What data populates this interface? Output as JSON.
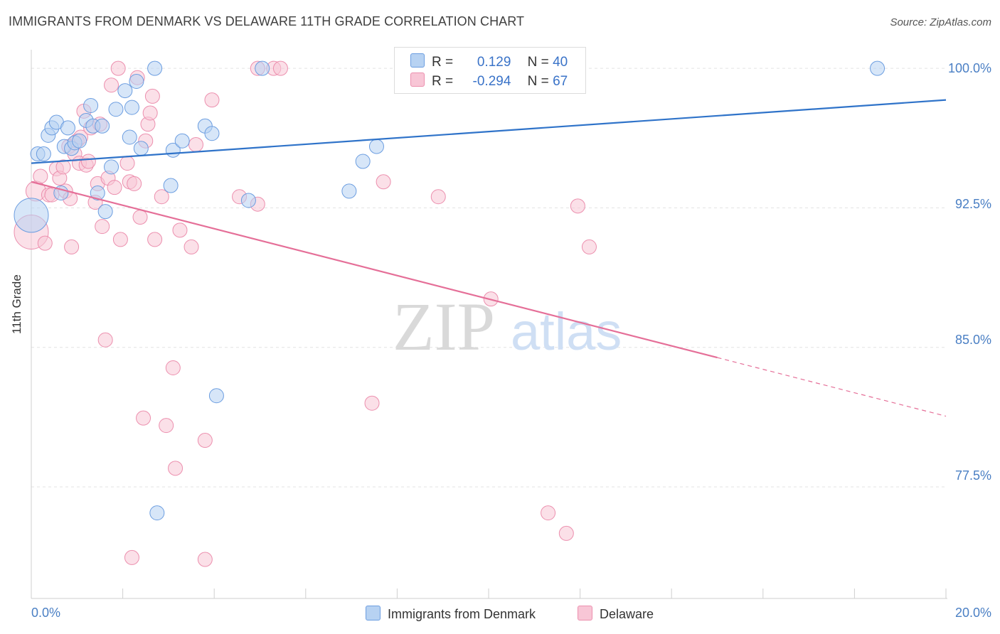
{
  "header": {
    "title": "IMMIGRANTS FROM DENMARK VS DELAWARE 11TH GRADE CORRELATION CHART",
    "source": "Source: ZipAtlas.com"
  },
  "watermark": {
    "zip": "ZIP",
    "atlas": "atlas"
  },
  "legend_top": {
    "rows": [
      {
        "r_label": "R =",
        "r_value": "0.129",
        "n_label": "N =",
        "n_value": "40"
      },
      {
        "r_label": "R =",
        "r_value": "-0.294",
        "n_label": "N =",
        "n_value": "67"
      }
    ]
  },
  "legend_bottom": {
    "items": [
      "Immigrants from Denmark",
      "Delaware"
    ]
  },
  "colors": {
    "blue_fill": "#b7d2f2",
    "blue_stroke": "#6b9de0",
    "blue_line": "#2f73c9",
    "pink_fill": "#f8c6d6",
    "pink_stroke": "#ec8fae",
    "pink_line": "#e56f98",
    "tick_text": "#4a7fc4",
    "grid": "#e3e3e3"
  },
  "chart_data": {
    "type": "scatter",
    "title": "IMMIGRANTS FROM DENMARK VS DELAWARE 11TH GRADE CORRELATION CHART",
    "xlabel": "",
    "ylabel": "11th Grade",
    "xlim": [
      0,
      20
    ],
    "ylim": [
      71.5,
      101.0
    ],
    "x_tick_labels": [
      "0.0%",
      "20.0%"
    ],
    "y_ticks": [
      100.0,
      92.5,
      85.0,
      77.5
    ],
    "y_tick_labels": [
      "100.0%",
      "92.5%",
      "85.0%",
      "77.5%"
    ],
    "grid": true,
    "legend_placement": "top-center",
    "series": [
      {
        "name": "Immigrants from Denmark",
        "R": 0.129,
        "N": 40,
        "trend": {
          "x": [
            0.0,
            20.0
          ],
          "y": [
            94.9,
            98.3
          ],
          "dashed_from_x": null
        },
        "points": [
          [
            0.0,
            92.1,
            24
          ],
          [
            0.14,
            95.4,
            10
          ],
          [
            0.27,
            95.4,
            10
          ],
          [
            0.37,
            96.4,
            10
          ],
          [
            0.45,
            96.8,
            10
          ],
          [
            0.55,
            97.1,
            10
          ],
          [
            0.65,
            93.3,
            10
          ],
          [
            0.72,
            95.8,
            10
          ],
          [
            0.8,
            96.8,
            10
          ],
          [
            0.88,
            95.7,
            10
          ],
          [
            0.95,
            96.0,
            10
          ],
          [
            1.05,
            96.1,
            10
          ],
          [
            1.2,
            97.2,
            10
          ],
          [
            1.3,
            98.0,
            10
          ],
          [
            1.35,
            96.9,
            10
          ],
          [
            1.45,
            93.3,
            10
          ],
          [
            1.55,
            96.9,
            10
          ],
          [
            1.62,
            92.3,
            10
          ],
          [
            1.75,
            94.7,
            10
          ],
          [
            1.85,
            97.8,
            10
          ],
          [
            2.05,
            98.8,
            10
          ],
          [
            2.15,
            96.3,
            10
          ],
          [
            2.2,
            97.9,
            10
          ],
          [
            2.3,
            99.3,
            10
          ],
          [
            2.4,
            95.7,
            10
          ],
          [
            2.7,
            100.0,
            10
          ],
          [
            2.75,
            76.1,
            10
          ],
          [
            3.05,
            93.7,
            10
          ],
          [
            3.1,
            95.6,
            10
          ],
          [
            3.3,
            96.1,
            10
          ],
          [
            3.8,
            96.9,
            10
          ],
          [
            3.95,
            96.5,
            10
          ],
          [
            4.05,
            82.4,
            10
          ],
          [
            4.75,
            92.9,
            10
          ],
          [
            5.05,
            100.0,
            10
          ],
          [
            6.95,
            93.4,
            10
          ],
          [
            7.25,
            95.0,
            10
          ],
          [
            7.55,
            95.8,
            10
          ],
          [
            8.75,
            100.0,
            10
          ],
          [
            18.5,
            100.0,
            10
          ]
        ]
      },
      {
        "name": "Delaware",
        "R": -0.294,
        "N": 67,
        "trend": {
          "x": [
            0.0,
            20.0
          ],
          "y": [
            93.9,
            81.3
          ],
          "dashed_from_x": 15.0
        },
        "points": [
          [
            0.0,
            91.2,
            24
          ],
          [
            0.1,
            93.4,
            14
          ],
          [
            0.2,
            94.2,
            10
          ],
          [
            0.3,
            90.6,
            10
          ],
          [
            0.38,
            93.2,
            10
          ],
          [
            0.45,
            93.2,
            10
          ],
          [
            0.55,
            94.6,
            10
          ],
          [
            0.62,
            94.1,
            10
          ],
          [
            0.7,
            94.7,
            10
          ],
          [
            0.75,
            93.4,
            10
          ],
          [
            0.82,
            95.8,
            10
          ],
          [
            0.85,
            93.0,
            10
          ],
          [
            0.88,
            90.4,
            10
          ],
          [
            0.95,
            95.4,
            10
          ],
          [
            1.0,
            96.1,
            10
          ],
          [
            1.05,
            94.9,
            10
          ],
          [
            1.08,
            96.3,
            10
          ],
          [
            1.15,
            97.7,
            10
          ],
          [
            1.2,
            94.8,
            10
          ],
          [
            1.25,
            95.0,
            10
          ],
          [
            1.3,
            96.8,
            10
          ],
          [
            1.4,
            92.8,
            10
          ],
          [
            1.45,
            93.8,
            10
          ],
          [
            1.5,
            97.0,
            10
          ],
          [
            1.55,
            91.5,
            10
          ],
          [
            1.62,
            85.4,
            10
          ],
          [
            1.68,
            94.1,
            10
          ],
          [
            1.75,
            99.1,
            10
          ],
          [
            1.82,
            93.6,
            10
          ],
          [
            1.9,
            100.0,
            10
          ],
          [
            1.95,
            90.8,
            10
          ],
          [
            2.1,
            94.9,
            10
          ],
          [
            2.15,
            93.9,
            10
          ],
          [
            2.2,
            73.7,
            10
          ],
          [
            2.25,
            93.8,
            10
          ],
          [
            2.32,
            99.5,
            10
          ],
          [
            2.38,
            92.0,
            10
          ],
          [
            2.45,
            81.2,
            10
          ],
          [
            2.5,
            96.1,
            10
          ],
          [
            2.55,
            97.0,
            10
          ],
          [
            2.6,
            97.6,
            10
          ],
          [
            2.65,
            98.5,
            10
          ],
          [
            2.7,
            90.8,
            10
          ],
          [
            2.85,
            93.1,
            10
          ],
          [
            2.95,
            80.8,
            10
          ],
          [
            3.1,
            83.9,
            10
          ],
          [
            3.15,
            78.5,
            10
          ],
          [
            3.25,
            91.3,
            10
          ],
          [
            3.5,
            90.4,
            10
          ],
          [
            3.6,
            95.9,
            10
          ],
          [
            3.8,
            80.0,
            10
          ],
          [
            3.8,
            73.6,
            10
          ],
          [
            3.95,
            98.3,
            10
          ],
          [
            4.55,
            93.1,
            10
          ],
          [
            4.95,
            100.0,
            10
          ],
          [
            4.95,
            92.7,
            10
          ],
          [
            5.3,
            100.0,
            10
          ],
          [
            5.45,
            100.0,
            10
          ],
          [
            7.45,
            82.0,
            10
          ],
          [
            7.7,
            93.9,
            10
          ],
          [
            8.9,
            93.1,
            10
          ],
          [
            10.05,
            87.6,
            10
          ],
          [
            10.75,
            100.0,
            10
          ],
          [
            11.3,
            76.1,
            10
          ],
          [
            11.7,
            75.0,
            10
          ],
          [
            11.95,
            92.6,
            10
          ],
          [
            12.2,
            90.4,
            10
          ]
        ]
      }
    ]
  }
}
